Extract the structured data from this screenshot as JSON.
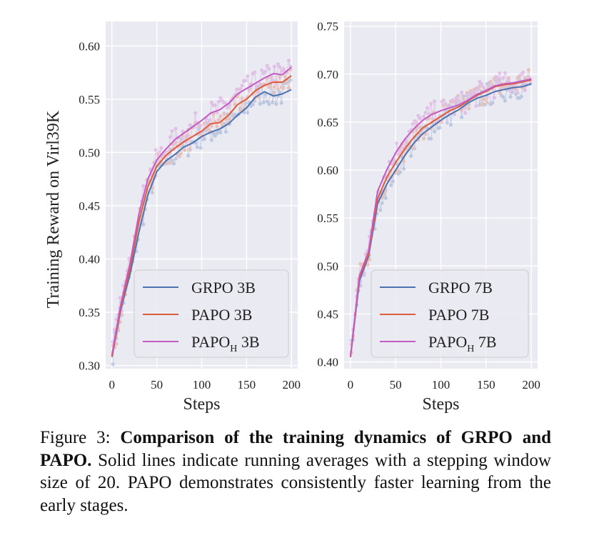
{
  "chart_data": [
    {
      "type": "line",
      "ylabel": "Training Reward on Virl39K",
      "xlabel": "Steps",
      "xlim": [
        -7,
        207
      ],
      "ylim": [
        0.297,
        0.623
      ],
      "xticks": [
        0,
        50,
        100,
        150,
        200
      ],
      "xtick_labels": [
        "0",
        "50",
        "100",
        "150",
        "200"
      ],
      "yticks": [
        0.3,
        0.35,
        0.4,
        0.45,
        0.5,
        0.55,
        0.6
      ],
      "ytick_labels": [
        "0.30",
        "0.35",
        "0.40",
        "0.45",
        "0.50",
        "0.55",
        "0.60"
      ],
      "grid": true,
      "legend_position": "bottom-right",
      "series": [
        {
          "name": "GRPO 3B",
          "name_main": "GRPO",
          "name_sub": "",
          "name_suffix": " 3B",
          "x": [
            0,
            10,
            20,
            30,
            40,
            50,
            60,
            70,
            80,
            90,
            100,
            110,
            120,
            130,
            140,
            150,
            160,
            170,
            180,
            190,
            200
          ],
          "y": [
            0.308,
            0.353,
            0.385,
            0.425,
            0.46,
            0.482,
            0.492,
            0.498,
            0.505,
            0.509,
            0.515,
            0.519,
            0.522,
            0.527,
            0.535,
            0.542,
            0.552,
            0.557,
            0.553,
            0.555,
            0.559
          ]
        },
        {
          "name": "PAPO 3B",
          "name_main": "PAPO",
          "name_sub": "",
          "name_suffix": " 3B",
          "x": [
            0,
            10,
            20,
            30,
            40,
            50,
            60,
            70,
            80,
            90,
            100,
            110,
            120,
            130,
            140,
            150,
            160,
            170,
            180,
            190,
            200
          ],
          "y": [
            0.308,
            0.355,
            0.39,
            0.435,
            0.468,
            0.487,
            0.497,
            0.504,
            0.51,
            0.515,
            0.52,
            0.527,
            0.528,
            0.535,
            0.545,
            0.55,
            0.558,
            0.563,
            0.566,
            0.566,
            0.572
          ]
        },
        {
          "name": "PAPO_H 3B",
          "name_main": "PAPO",
          "name_sub": "H",
          "name_suffix": " 3B",
          "x": [
            0,
            10,
            20,
            30,
            40,
            50,
            60,
            70,
            80,
            90,
            100,
            110,
            120,
            130,
            140,
            150,
            160,
            170,
            180,
            190,
            200
          ],
          "y": [
            0.31,
            0.358,
            0.395,
            0.442,
            0.475,
            0.493,
            0.503,
            0.512,
            0.518,
            0.524,
            0.53,
            0.537,
            0.54,
            0.546,
            0.555,
            0.56,
            0.565,
            0.57,
            0.574,
            0.573,
            0.58
          ]
        }
      ],
      "colors": {
        "GRPO 3B": "#4c72b0",
        "PAPO 3B": "#dd5c3c",
        "PAPO_H 3B": "#c45ac4"
      }
    },
    {
      "type": "line",
      "ylabel": "",
      "xlabel": "Steps",
      "xlim": [
        -7,
        207
      ],
      "ylim": [
        0.393,
        0.755
      ],
      "xticks": [
        0,
        50,
        100,
        150,
        200
      ],
      "xtick_labels": [
        "0",
        "50",
        "100",
        "150",
        "200"
      ],
      "yticks": [
        0.4,
        0.45,
        0.5,
        0.55,
        0.6,
        0.65,
        0.7,
        0.75
      ],
      "ytick_labels": [
        "0.40",
        "0.45",
        "0.50",
        "0.55",
        "0.60",
        "0.65",
        "0.70",
        "0.75"
      ],
      "grid": true,
      "legend_position": "bottom-right",
      "series": [
        {
          "name": "GRPO 7B",
          "name_main": "GRPO",
          "name_sub": "",
          "name_suffix": " 7B",
          "x": [
            0,
            10,
            20,
            30,
            40,
            50,
            60,
            70,
            80,
            90,
            100,
            110,
            120,
            130,
            140,
            150,
            160,
            170,
            180,
            190,
            200
          ],
          "y": [
            0.405,
            0.485,
            0.51,
            0.565,
            0.585,
            0.6,
            0.615,
            0.628,
            0.638,
            0.645,
            0.652,
            0.658,
            0.663,
            0.67,
            0.675,
            0.678,
            0.682,
            0.684,
            0.686,
            0.687,
            0.69
          ]
        },
        {
          "name": "PAPO 7B",
          "name_main": "PAPO",
          "name_sub": "",
          "name_suffix": " 7B",
          "x": [
            0,
            10,
            20,
            30,
            40,
            50,
            60,
            70,
            80,
            90,
            100,
            110,
            120,
            130,
            140,
            150,
            160,
            170,
            180,
            190,
            200
          ],
          "y": [
            0.405,
            0.488,
            0.512,
            0.57,
            0.592,
            0.608,
            0.622,
            0.634,
            0.644,
            0.65,
            0.656,
            0.662,
            0.666,
            0.672,
            0.678,
            0.682,
            0.687,
            0.689,
            0.69,
            0.692,
            0.694
          ]
        },
        {
          "name": "PAPO_H 7B",
          "name_main": "PAPO",
          "name_sub": "H",
          "name_suffix": " 7B",
          "x": [
            0,
            10,
            20,
            30,
            40,
            50,
            60,
            70,
            80,
            90,
            100,
            110,
            120,
            130,
            140,
            150,
            160,
            170,
            180,
            190,
            200
          ],
          "y": [
            0.406,
            0.49,
            0.515,
            0.578,
            0.6,
            0.618,
            0.632,
            0.643,
            0.652,
            0.658,
            0.662,
            0.665,
            0.668,
            0.673,
            0.679,
            0.683,
            0.688,
            0.69,
            0.691,
            0.693,
            0.695
          ]
        }
      ],
      "colors": {
        "GRPO 7B": "#4c72b0",
        "PAPO 7B": "#dd5c3c",
        "PAPO_H 7B": "#c45ac4"
      }
    }
  ],
  "caption": {
    "label": "Figure 3: ",
    "bold": "Comparison of the training dynamics of GRPO and PAPO.",
    "text": " Solid lines indicate running averages with a stepping window size of 20. PAPO demonstrates consistently faster learning from the early stages."
  }
}
